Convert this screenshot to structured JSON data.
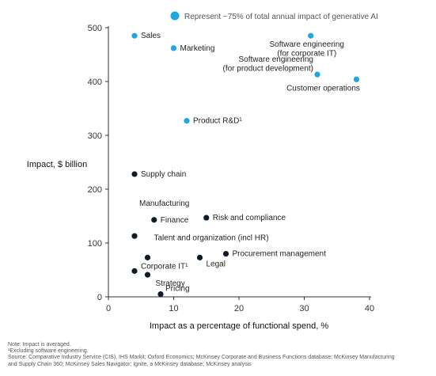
{
  "chart_data": {
    "type": "scatter",
    "xlabel": "Impact as a percentage of functional spend, %",
    "ylabel": "Impact, $ billion",
    "xlim": [
      0,
      40
    ],
    "ylim": [
      0,
      500
    ],
    "xticks": [
      0,
      10,
      20,
      30,
      40
    ],
    "yticks": [
      0,
      100,
      200,
      300,
      400,
      500
    ],
    "grid": false,
    "legend": {
      "text": "Represent ~75% of total annual impact of generative AI",
      "color": "#1ea7e1",
      "placement": "top"
    },
    "colors": {
      "highlight": "#1ea7e1",
      "default": "#0d1b2a"
    },
    "points": [
      {
        "label": "Sales",
        "x": 4,
        "y": 485,
        "highlight": true
      },
      {
        "label": "Marketing",
        "x": 10,
        "y": 462,
        "highlight": true
      },
      {
        "label": "Software engineering\n(for corporate IT)",
        "x": 31,
        "y": 485,
        "highlight": true
      },
      {
        "label": "Software engineering\n(for product development)",
        "x": 32,
        "y": 413,
        "highlight": true
      },
      {
        "label": "Customer operations",
        "x": 38,
        "y": 404,
        "highlight": true
      },
      {
        "label": "Product R&D¹",
        "x": 12,
        "y": 327,
        "highlight": true
      },
      {
        "label": "Supply chain",
        "x": 4,
        "y": 228,
        "highlight": false
      },
      {
        "label": "Manufacturing",
        "x": 4,
        "y": 113,
        "highlight": false
      },
      {
        "label": "Finance",
        "x": 7,
        "y": 143,
        "highlight": false
      },
      {
        "label": "Risk and compliance",
        "x": 15,
        "y": 147,
        "highlight": false
      },
      {
        "label": "Talent and organization (incl HR)",
        "x": 6,
        "y": 73,
        "highlight": false
      },
      {
        "label": "Procurement management",
        "x": 18,
        "y": 80,
        "highlight": false
      },
      {
        "label": "Legal",
        "x": 14,
        "y": 73,
        "highlight": false
      },
      {
        "label": "Corporate IT¹",
        "x": 4,
        "y": 48,
        "highlight": false
      },
      {
        "label": "Strategy",
        "x": 6,
        "y": 41,
        "highlight": false
      },
      {
        "label": "Pricing",
        "x": 8,
        "y": 5,
        "highlight": false
      }
    ]
  },
  "footnotes": [
    "Note: Impact is averaged.",
    "¹Excluding software engineering.",
    "Source: Comparative Industry Service (CIS), IHS Markit; Oxford Economics; McKinsey Corporate and Business Functions database; McKinsey Manufacturing",
    "and Supply Chain 360; McKinsey Sales Navigator; Ignite, a McKinsey database; McKinsey analysis"
  ]
}
